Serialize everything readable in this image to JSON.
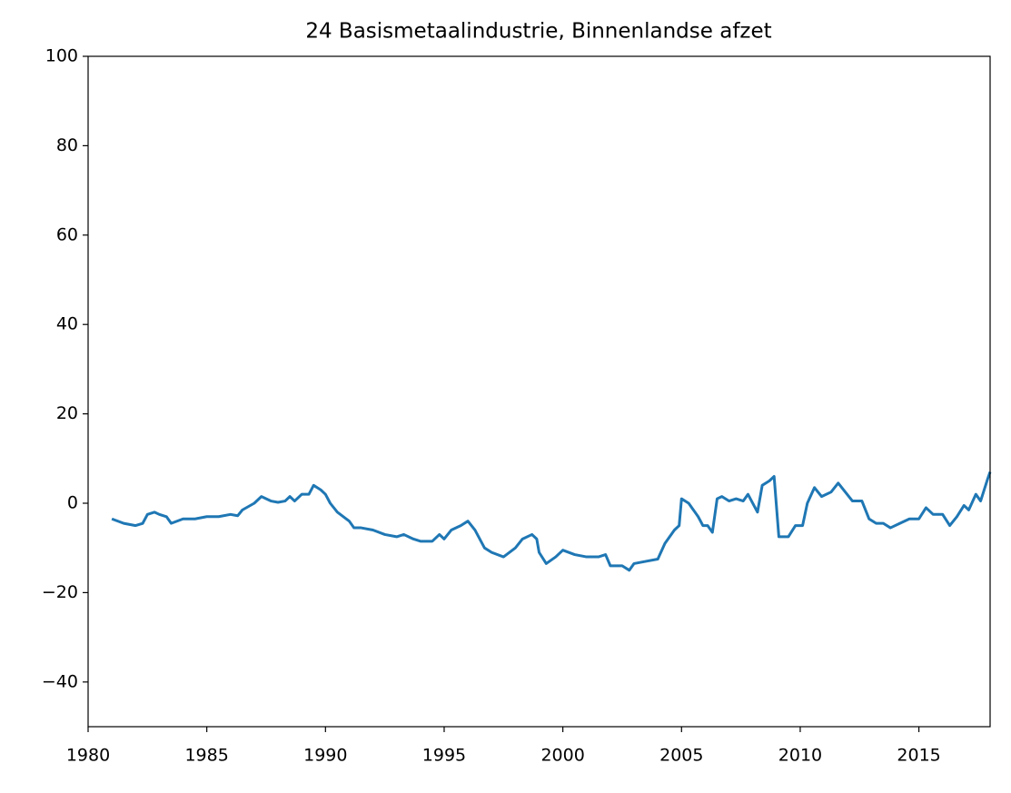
{
  "chart_data": {
    "type": "line",
    "title": "24 Basismetaalindustrie, Binnenlandse afzet",
    "x": [
      1981.0,
      1981.5,
      1982.0,
      1982.3,
      1982.5,
      1982.8,
      1983.0,
      1983.3,
      1983.5,
      1984.0,
      1984.5,
      1985.0,
      1985.5,
      1986.0,
      1986.3,
      1986.5,
      1987.0,
      1987.3,
      1987.7,
      1988.0,
      1988.3,
      1988.5,
      1988.7,
      1989.0,
      1989.3,
      1989.5,
      1989.8,
      1990.0,
      1990.2,
      1990.5,
      1991.0,
      1991.2,
      1991.5,
      1992.0,
      1992.5,
      1993.0,
      1993.3,
      1993.7,
      1994.0,
      1994.5,
      1994.8,
      1995.0,
      1995.3,
      1995.7,
      1996.0,
      1996.3,
      1996.7,
      1997.0,
      1997.5,
      1998.0,
      1998.3,
      1998.7,
      1998.9,
      1999.0,
      1999.3,
      1999.7,
      2000.0,
      2000.5,
      2001.0,
      2001.5,
      2001.8,
      2002.0,
      2002.5,
      2002.8,
      2003.0,
      2003.5,
      2004.0,
      2004.3,
      2004.7,
      2004.9,
      2005.0,
      2005.3,
      2005.7,
      2005.9,
      2006.1,
      2006.3,
      2006.5,
      2006.7,
      2007.0,
      2007.3,
      2007.6,
      2007.8,
      2008.2,
      2008.4,
      2008.7,
      2008.9,
      2009.1,
      2009.5,
      2009.8,
      2010.1,
      2010.3,
      2010.6,
      2010.9,
      2011.3,
      2011.6,
      2011.9,
      2012.2,
      2012.6,
      2012.9,
      2013.2,
      2013.5,
      2013.8,
      2014.2,
      2014.6,
      2015.0,
      2015.3,
      2015.6,
      2016.0,
      2016.3,
      2016.6,
      2016.9,
      2017.1,
      2017.4,
      2017.6,
      2017.9,
      2018.0
    ],
    "series": [
      {
        "color": "#1f77b4",
        "values": [
          -3.5,
          -4.5,
          -5,
          -4.5,
          -2.5,
          -2,
          -2.5,
          -3,
          -4.5,
          -3.5,
          -3.5,
          -3,
          -3,
          -2.5,
          -2.8,
          -1.5,
          0,
          1.5,
          0.5,
          0.2,
          0.5,
          1.5,
          0.5,
          2,
          2,
          4,
          3,
          2,
          0,
          -2,
          -4,
          -5.5,
          -5.5,
          -6,
          -7,
          -7.5,
          -7,
          -8,
          -8.5,
          -8.5,
          -7,
          -8,
          -6,
          -5,
          -4,
          -6,
          -10,
          -11,
          -12,
          -10,
          -8,
          -7,
          -8,
          -11,
          -13.5,
          -12,
          -10.5,
          -11.5,
          -12,
          -12,
          -11.5,
          -14,
          -14,
          -15,
          -13.5,
          -13,
          -12.5,
          -9,
          -6,
          -5,
          1,
          0,
          -3,
          -5,
          -5,
          -6.5,
          1,
          1.5,
          0.5,
          1,
          0.5,
          2,
          -2,
          4,
          5,
          6,
          -7.5,
          -7.5,
          -5,
          -5,
          0,
          3.5,
          1.5,
          2.5,
          4.5,
          2.5,
          0.5,
          0.5,
          -3.5,
          -4.5,
          -4.5,
          -5.5,
          -4.5,
          -3.5,
          -3.5,
          -1,
          -2.5,
          -2.5,
          -5,
          -3,
          -0.5,
          -1.5,
          2,
          0.5,
          5.5,
          7
        ]
      }
    ],
    "xlim": [
      1980,
      2018
    ],
    "xticks": [
      1980,
      1985,
      1990,
      1995,
      2000,
      2005,
      2010,
      2015
    ],
    "ylim": [
      -50,
      100
    ],
    "yticks": [
      {
        "value": -40,
        "label": "−40"
      },
      {
        "value": -20,
        "label": "−20"
      },
      0,
      20,
      40,
      60,
      80,
      100
    ]
  }
}
